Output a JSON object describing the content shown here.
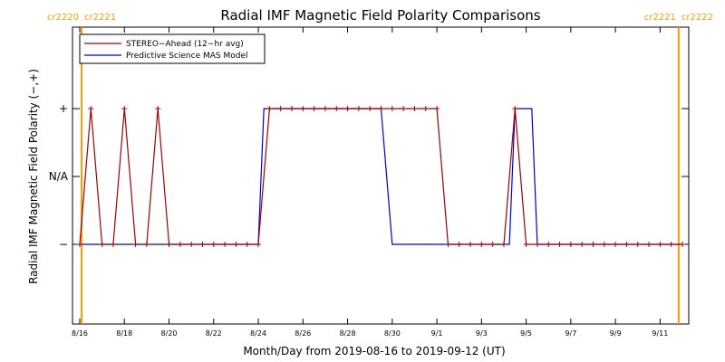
{
  "chart_data": {
    "type": "line",
    "title": "Radial IMF Magnetic Field Polarity Comparisons",
    "xlabel": "Month/Day from 2019-08-16 to 2019-09-12 (UT)",
    "ylabel": "Radial IMF Magnetic Field Polarity (−,+)",
    "xlim": [
      "2019-08-16",
      "2019-09-12"
    ],
    "x_ticks": [
      "8/16",
      "8/18",
      "8/20",
      "8/22",
      "8/24",
      "8/26",
      "8/28",
      "8/30",
      "9/1",
      "9/3",
      "9/5",
      "9/7",
      "9/9",
      "9/11"
    ],
    "y_ticks": [
      "−",
      "N/A",
      "+"
    ],
    "ylim": [
      "−",
      "+"
    ],
    "carrington_markers": [
      {
        "date": "2019-08-16 02:00",
        "left_label": "cr2220",
        "right_label": "cr2221"
      },
      {
        "date": "2019-09-11 20:00",
        "left_label": "cr2221",
        "right_label": "cr2222"
      }
    ],
    "legend_position": "top-left",
    "series": [
      {
        "name": "STEREO−Ahead (12−hr avg)",
        "color": "#a00000",
        "marker": "+",
        "points": [
          [
            "2019-08-16 00:00",
            -1
          ],
          [
            "2019-08-16 12:00",
            1
          ],
          [
            "2019-08-17 00:00",
            -1
          ],
          [
            "2019-08-17 12:00",
            -1
          ],
          [
            "2019-08-18 00:00",
            1
          ],
          [
            "2019-08-18 12:00",
            -1
          ],
          [
            "2019-08-19 00:00",
            -1
          ],
          [
            "2019-08-19 12:00",
            1
          ],
          [
            "2019-08-20 00:00",
            -1
          ],
          [
            "2019-08-20 12:00",
            -1
          ],
          [
            "2019-08-21 00:00",
            -1
          ],
          [
            "2019-08-21 12:00",
            -1
          ],
          [
            "2019-08-22 00:00",
            -1
          ],
          [
            "2019-08-22 12:00",
            -1
          ],
          [
            "2019-08-23 00:00",
            -1
          ],
          [
            "2019-08-23 12:00",
            -1
          ],
          [
            "2019-08-24 00:00",
            -1
          ],
          [
            "2019-08-24 12:00",
            1
          ],
          [
            "2019-08-25 00:00",
            1
          ],
          [
            "2019-08-25 12:00",
            1
          ],
          [
            "2019-08-26 00:00",
            1
          ],
          [
            "2019-08-26 12:00",
            1
          ],
          [
            "2019-08-27 00:00",
            1
          ],
          [
            "2019-08-27 12:00",
            1
          ],
          [
            "2019-08-28 00:00",
            1
          ],
          [
            "2019-08-28 12:00",
            1
          ],
          [
            "2019-08-29 00:00",
            1
          ],
          [
            "2019-08-29 12:00",
            1
          ],
          [
            "2019-08-30 00:00",
            1
          ],
          [
            "2019-08-30 12:00",
            1
          ],
          [
            "2019-08-31 00:00",
            1
          ],
          [
            "2019-08-31 12:00",
            1
          ],
          [
            "2019-09-01 00:00",
            1
          ],
          [
            "2019-09-01 12:00",
            -1
          ],
          [
            "2019-09-02 00:00",
            -1
          ],
          [
            "2019-09-02 12:00",
            -1
          ],
          [
            "2019-09-03 00:00",
            -1
          ],
          [
            "2019-09-03 12:00",
            -1
          ],
          [
            "2019-09-04 00:00",
            -1
          ],
          [
            "2019-09-04 12:00",
            1
          ],
          [
            "2019-09-05 00:00",
            -1
          ],
          [
            "2019-09-05 12:00",
            -1
          ],
          [
            "2019-09-06 00:00",
            -1
          ],
          [
            "2019-09-06 12:00",
            -1
          ],
          [
            "2019-09-07 00:00",
            -1
          ],
          [
            "2019-09-07 12:00",
            -1
          ],
          [
            "2019-09-08 00:00",
            -1
          ],
          [
            "2019-09-08 12:00",
            -1
          ],
          [
            "2019-09-09 00:00",
            -1
          ],
          [
            "2019-09-09 12:00",
            -1
          ],
          [
            "2019-09-10 00:00",
            -1
          ],
          [
            "2019-09-10 12:00",
            -1
          ],
          [
            "2019-09-11 00:00",
            -1
          ],
          [
            "2019-09-11 12:00",
            -1
          ],
          [
            "2019-09-12 00:00",
            -1
          ]
        ]
      },
      {
        "name": "Predictive Science MAS Model",
        "color": "#0000cc",
        "marker": "none",
        "points": [
          [
            "2019-08-16 00:00",
            -1
          ],
          [
            "2019-08-24 00:00",
            -1
          ],
          [
            "2019-08-24 06:00",
            1
          ],
          [
            "2019-08-29 12:00",
            1
          ],
          [
            "2019-08-30 00:00",
            -1
          ],
          [
            "2019-09-04 06:00",
            -1
          ],
          [
            "2019-09-04 12:00",
            1
          ],
          [
            "2019-09-05 06:00",
            1
          ],
          [
            "2019-09-05 12:00",
            -1
          ],
          [
            "2019-09-12 00:00",
            -1
          ]
        ]
      }
    ]
  }
}
